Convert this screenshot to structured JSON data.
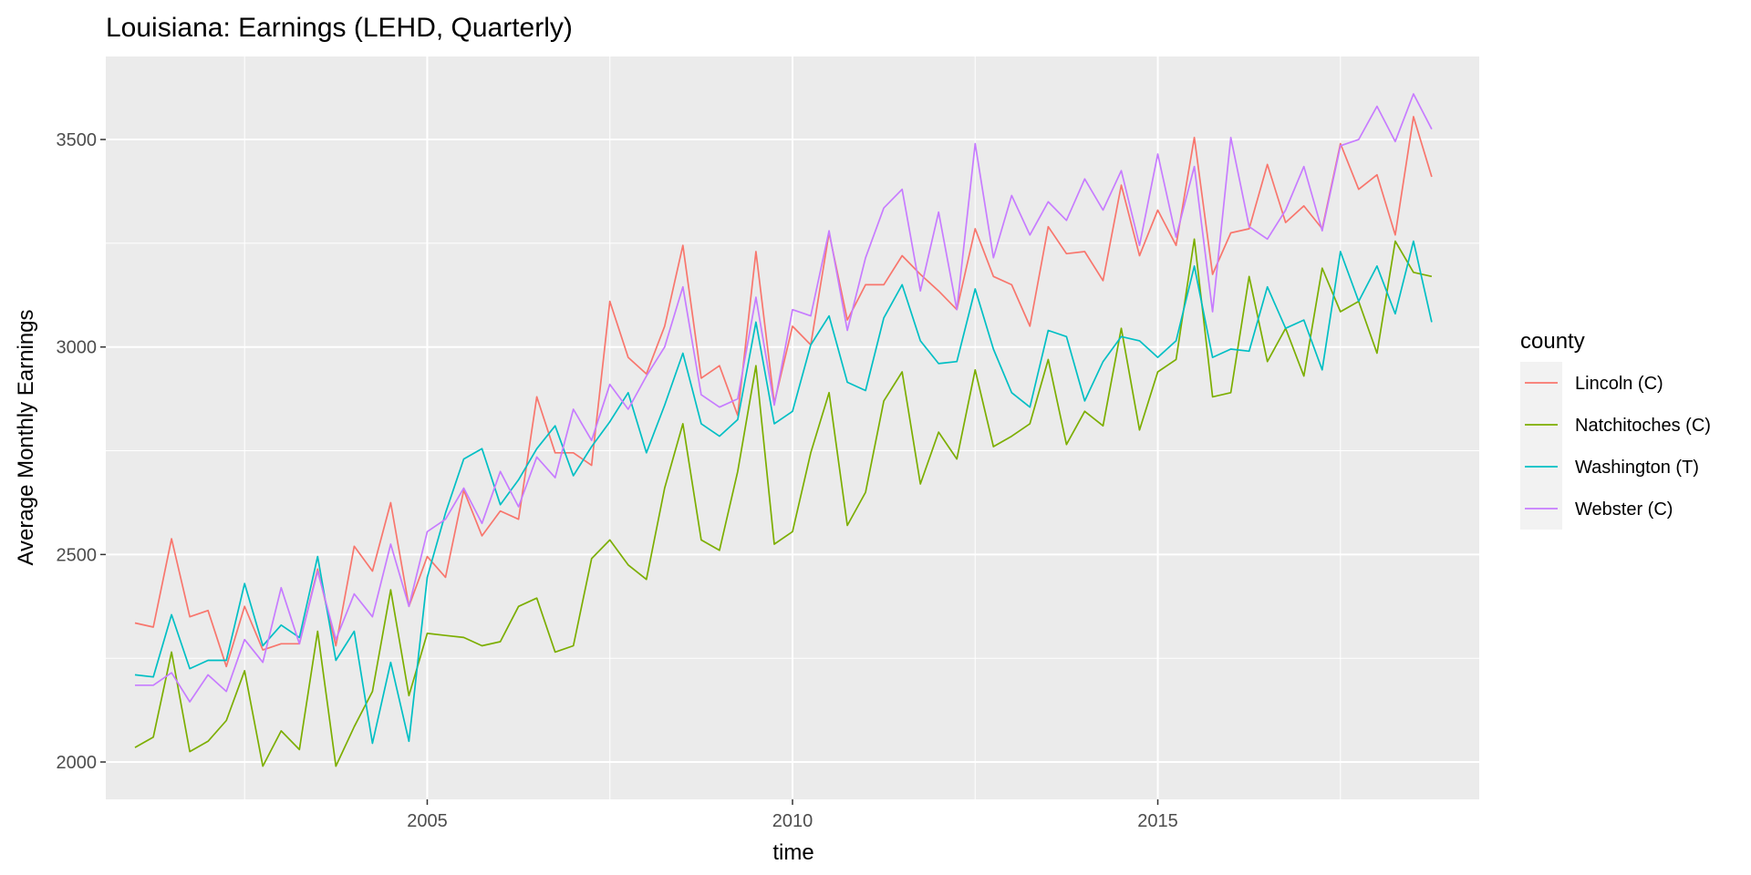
{
  "chart_data": {
    "type": "line",
    "title": "Louisiana: Earnings (LEHD, Quarterly)",
    "xlabel": "time",
    "ylabel": "Average Monthly Earnings",
    "x_ticks": [
      2005,
      2010,
      2015
    ],
    "y_ticks": [
      2000,
      2500,
      3000,
      3500
    ],
    "xlim": [
      2000.6,
      2019.4
    ],
    "ylim": [
      1910,
      3700
    ],
    "grid": true,
    "legend": {
      "title": "county",
      "placement": "right"
    },
    "x_start": 2001.0,
    "x_step": 0.25,
    "series": [
      {
        "name": "Lincoln (C)",
        "color": "#F8766D",
        "values": [
          2335,
          2325,
          2538,
          2350,
          2365,
          2230,
          2375,
          2270,
          2285,
          2285,
          2465,
          2280,
          2520,
          2460,
          2625,
          2375,
          2495,
          2445,
          2655,
          2545,
          2605,
          2585,
          2880,
          2745,
          2745,
          2715,
          3110,
          2975,
          2935,
          3050,
          3245,
          2925,
          2955,
          2835,
          3230,
          2865,
          3050,
          3005,
          3275,
          3065,
          3150,
          3150,
          3220,
          3175,
          3135,
          3090,
          3285,
          3170,
          3150,
          3050,
          3290,
          3225,
          3230,
          3160,
          3390,
          3220,
          3330,
          3245,
          3505,
          3175,
          3275,
          3285,
          3440,
          3300,
          3340,
          3285,
          3490,
          3380,
          3415,
          3270,
          3555,
          3410
        ]
      },
      {
        "name": "Natchitoches (C)",
        "color": "#7CAE00",
        "values": [
          2035,
          2060,
          2265,
          2025,
          2050,
          2100,
          2220,
          1990,
          2075,
          2030,
          2315,
          1990,
          2085,
          2170,
          2415,
          2160,
          2310,
          2305,
          2300,
          2280,
          2290,
          2375,
          2395,
          2265,
          2280,
          2490,
          2535,
          2475,
          2440,
          2660,
          2815,
          2535,
          2510,
          2700,
          2955,
          2525,
          2555,
          2745,
          2890,
          2570,
          2650,
          2870,
          2940,
          2670,
          2795,
          2730,
          2945,
          2760,
          2785,
          2815,
          2970,
          2765,
          2845,
          2810,
          3045,
          2800,
          2940,
          2970,
          3260,
          2880,
          2890,
          3170,
          2965,
          3045,
          2930,
          3190,
          3085,
          3110,
          2985,
          3255,
          3180,
          3170
        ]
      },
      {
        "name": "Washington (T)",
        "color": "#00BFC4",
        "values": [
          2210,
          2205,
          2355,
          2225,
          2245,
          2245,
          2430,
          2280,
          2330,
          2300,
          2495,
          2245,
          2315,
          2045,
          2240,
          2050,
          2445,
          2600,
          2730,
          2755,
          2620,
          2680,
          2755,
          2810,
          2690,
          2760,
          2820,
          2890,
          2745,
          2860,
          2985,
          2815,
          2785,
          2825,
          3060,
          2815,
          2845,
          3005,
          3075,
          2915,
          2895,
          3070,
          3150,
          3015,
          2960,
          2965,
          3140,
          2995,
          2890,
          2855,
          3040,
          3025,
          2870,
          2965,
          3025,
          3015,
          2975,
          3015,
          3195,
          2975,
          2995,
          2990,
          3145,
          3045,
          3065,
          2945,
          3230,
          3110,
          3195,
          3080,
          3255,
          3060
        ]
      },
      {
        "name": "Webster (C)",
        "color": "#C77CFF",
        "values": [
          2185,
          2185,
          2215,
          2145,
          2210,
          2170,
          2295,
          2240,
          2420,
          2285,
          2460,
          2295,
          2405,
          2350,
          2525,
          2375,
          2555,
          2585,
          2660,
          2575,
          2700,
          2615,
          2735,
          2685,
          2850,
          2775,
          2910,
          2850,
          2930,
          3000,
          3145,
          2885,
          2855,
          2875,
          3120,
          2860,
          3090,
          3075,
          3280,
          3040,
          3215,
          3335,
          3380,
          3135,
          3325,
          3090,
          3490,
          3215,
          3365,
          3270,
          3350,
          3305,
          3405,
          3330,
          3425,
          3245,
          3465,
          3265,
          3435,
          3085,
          3505,
          3290,
          3260,
          3330,
          3435,
          3280,
          3485,
          3500,
          3580,
          3495,
          3610,
          3525
        ]
      }
    ]
  }
}
